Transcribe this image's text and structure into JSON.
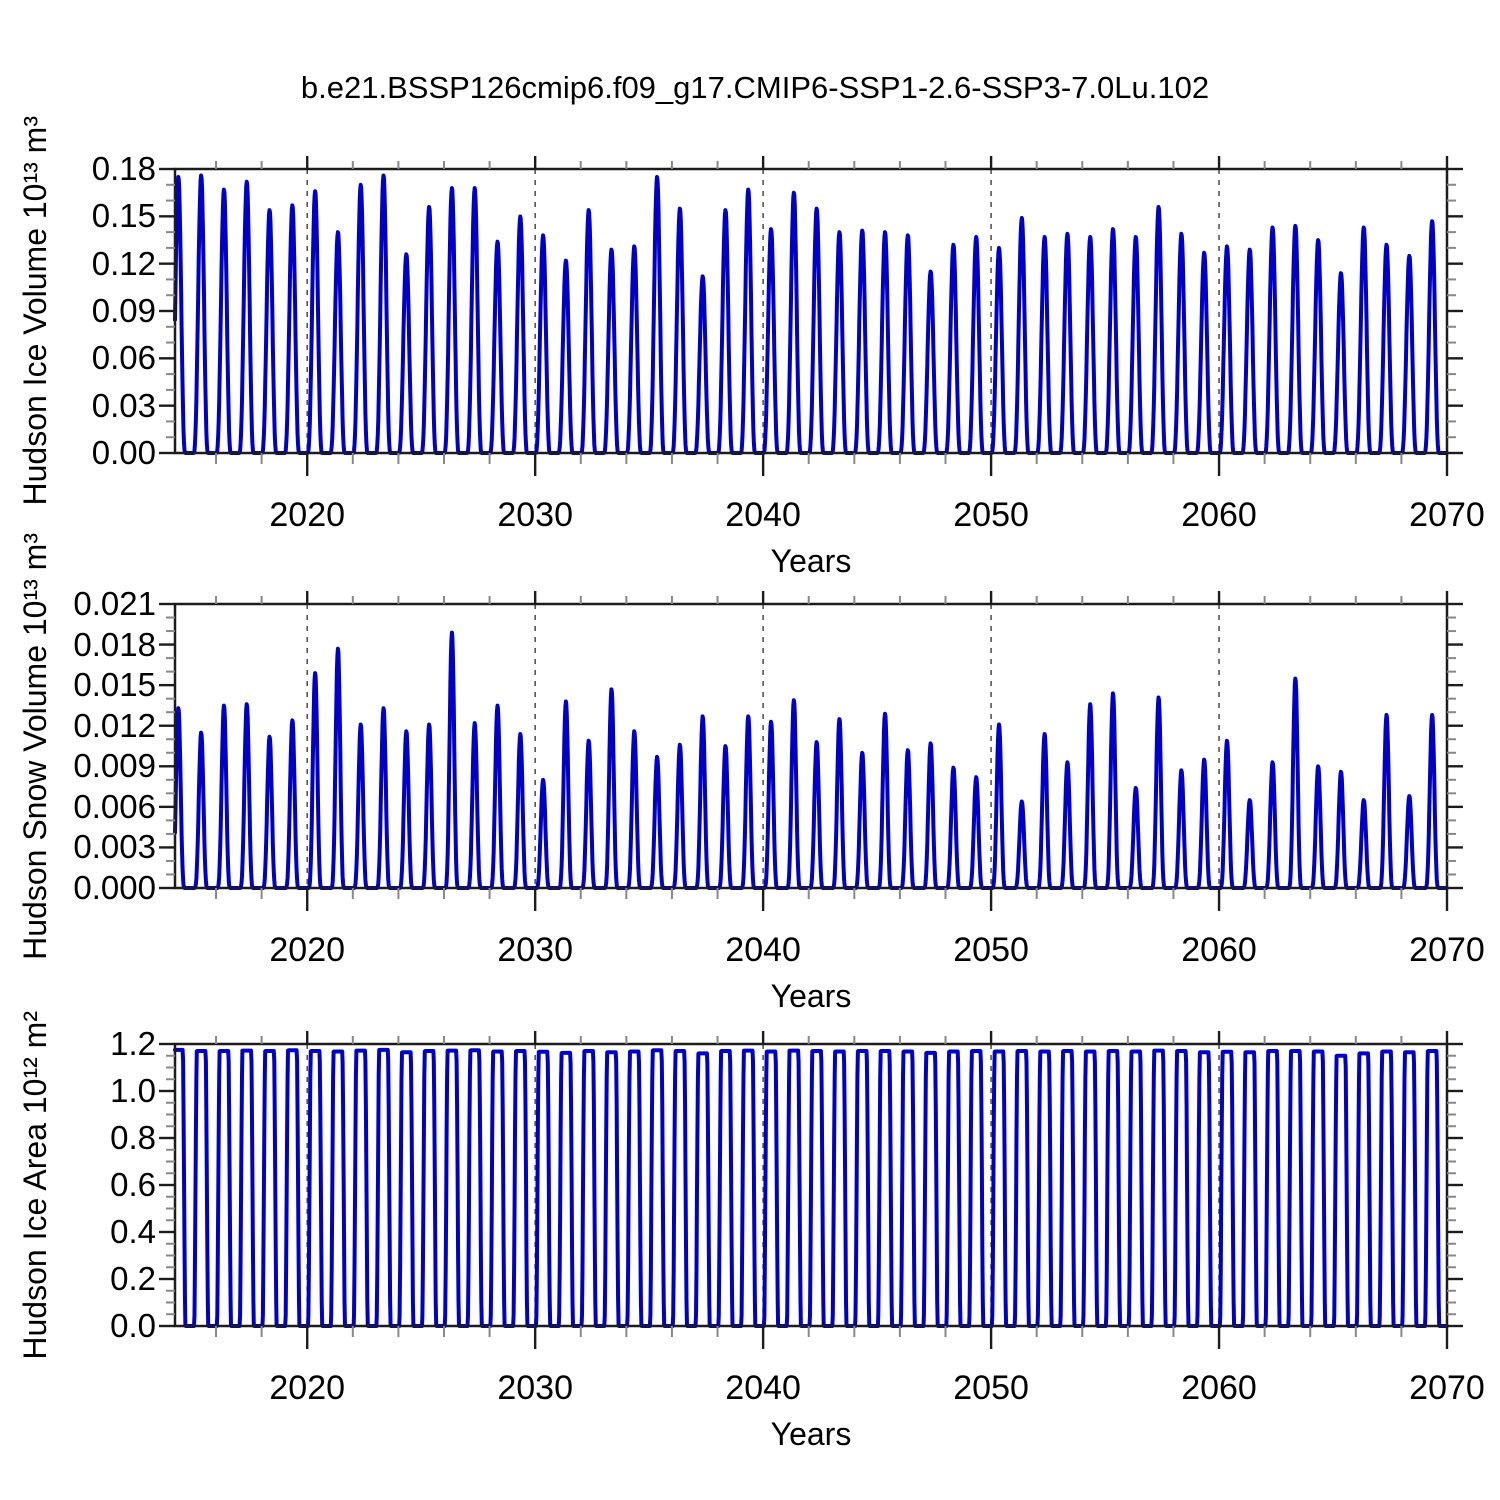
{
  "title": "b.e21.BSSP126cmip6.f09_g17.CMIP6-SSP1-2.6-SSP3-7.0Lu.102",
  "line_color": "#0000CD",
  "grid_color": "#555555",
  "axis_color": "#1c1c1c",
  "chart_data": [
    {
      "type": "line",
      "panel": 1,
      "ylabel": "Hudson Ice Volume 10¹³ m³",
      "xlabel": "Years",
      "ylim": [
        0,
        0.18
      ],
      "xlim": [
        2014.2,
        2070.0
      ],
      "ytick_labels": [
        "0.18",
        "0.15",
        "0.12",
        "0.09",
        "0.06",
        "0.03",
        "0.00"
      ],
      "ytick_values": [
        0.18,
        0.15,
        0.12,
        0.09,
        0.06,
        0.03,
        0.0
      ],
      "xtick_labels": [
        "2020",
        "2030",
        "2040",
        "2050",
        "2060",
        "2070"
      ],
      "xtick_values": [
        2020,
        2030,
        2040,
        2050,
        2060,
        2070
      ],
      "grid": "dashed vertical gridlines at decade years 2020-2060",
      "legend": "none",
      "annual_cycle": "value oscillates each year between ~0 (summer melt) and the winter peak listed below",
      "peak_years": [
        2014,
        2015,
        2016,
        2017,
        2018,
        2019,
        2020,
        2021,
        2022,
        2023,
        2024,
        2025,
        2026,
        2027,
        2028,
        2029,
        2030,
        2031,
        2032,
        2033,
        2034,
        2035,
        2036,
        2037,
        2038,
        2039,
        2040,
        2041,
        2042,
        2043,
        2044,
        2045,
        2046,
        2047,
        2048,
        2049,
        2050,
        2051,
        2052,
        2053,
        2054,
        2055,
        2056,
        2057,
        2058,
        2059,
        2060,
        2061,
        2062,
        2063,
        2064,
        2065,
        2066,
        2067,
        2068,
        2069
      ],
      "peak_values": [
        0.175,
        0.176,
        0.167,
        0.172,
        0.154,
        0.157,
        0.166,
        0.14,
        0.17,
        0.176,
        0.126,
        0.156,
        0.168,
        0.168,
        0.134,
        0.15,
        0.138,
        0.122,
        0.154,
        0.129,
        0.131,
        0.175,
        0.155,
        0.112,
        0.154,
        0.167,
        0.142,
        0.165,
        0.155,
        0.14,
        0.141,
        0.14,
        0.138,
        0.115,
        0.132,
        0.137,
        0.13,
        0.149,
        0.137,
        0.139,
        0.137,
        0.142,
        0.137,
        0.156,
        0.139,
        0.127,
        0.131,
        0.129,
        0.143,
        0.144,
        0.135,
        0.114,
        0.143,
        0.132,
        0.125,
        0.147
      ],
      "seasonal_minimum": 0.0
    },
    {
      "type": "line",
      "panel": 2,
      "ylabel": "Hudson Snow Volume 10¹³ m³",
      "xlabel": "Years",
      "ylim": [
        0,
        0.021
      ],
      "xlim": [
        2014.2,
        2070.0
      ],
      "ytick_labels": [
        "0.021",
        "0.018",
        "0.015",
        "0.012",
        "0.009",
        "0.006",
        "0.003",
        "0.000"
      ],
      "ytick_values": [
        0.021,
        0.018,
        0.015,
        0.012,
        0.009,
        0.006,
        0.003,
        0.0
      ],
      "xtick_labels": [
        "2020",
        "2030",
        "2040",
        "2050",
        "2060",
        "2070"
      ],
      "xtick_values": [
        2020,
        2030,
        2040,
        2050,
        2060,
        2070
      ],
      "grid": "dashed vertical gridlines at decade years 2020-2060",
      "legend": "none",
      "annual_cycle": "value oscillates each year between ~0 (summer) and the winter peak listed below",
      "peak_years": [
        2014,
        2015,
        2016,
        2017,
        2018,
        2019,
        2020,
        2021,
        2022,
        2023,
        2024,
        2025,
        2026,
        2027,
        2028,
        2029,
        2030,
        2031,
        2032,
        2033,
        2034,
        2035,
        2036,
        2037,
        2038,
        2039,
        2040,
        2041,
        2042,
        2043,
        2044,
        2045,
        2046,
        2047,
        2048,
        2049,
        2050,
        2051,
        2052,
        2053,
        2054,
        2055,
        2056,
        2057,
        2058,
        2059,
        2060,
        2061,
        2062,
        2063,
        2064,
        2065,
        2066,
        2067,
        2068,
        2069
      ],
      "peak_values": [
        0.0133,
        0.0115,
        0.0135,
        0.0136,
        0.0112,
        0.0124,
        0.0159,
        0.0177,
        0.0121,
        0.0133,
        0.0116,
        0.0121,
        0.0189,
        0.0122,
        0.0135,
        0.0114,
        0.008,
        0.0138,
        0.0109,
        0.0147,
        0.0116,
        0.0097,
        0.0106,
        0.0127,
        0.0105,
        0.0127,
        0.0123,
        0.0139,
        0.0108,
        0.0125,
        0.01,
        0.0129,
        0.0102,
        0.0107,
        0.0089,
        0.0082,
        0.0121,
        0.0064,
        0.0114,
        0.0093,
        0.0136,
        0.0144,
        0.0074,
        0.0141,
        0.0087,
        0.0095,
        0.0109,
        0.0065,
        0.0093,
        0.0155,
        0.009,
        0.0086,
        0.0065,
        0.0128,
        0.0068,
        0.0128
      ],
      "seasonal_minimum": 0.0
    },
    {
      "type": "line",
      "panel": 3,
      "ylabel": "Hudson Ice Area 10¹² m²",
      "xlabel": "Years",
      "ylim": [
        0,
        1.2
      ],
      "xlim": [
        2014.2,
        2070.0
      ],
      "ytick_labels": [
        "1.2",
        "1.0",
        "0.8",
        "0.6",
        "0.4",
        "0.2",
        "0.0"
      ],
      "ytick_values": [
        1.2,
        1.0,
        0.8,
        0.6,
        0.4,
        0.2,
        0.0
      ],
      "xtick_labels": [
        "2020",
        "2030",
        "2040",
        "2050",
        "2060",
        "2070"
      ],
      "xtick_values": [
        2020,
        2030,
        2040,
        2050,
        2060,
        2070
      ],
      "grid": "dashed vertical gridlines at decade years 2020-2060",
      "legend": "none",
      "annual_cycle": "square-wave-like annual cycle: flat winter maximum near full coverage, brief summer minimum at ~0",
      "peak_years": [
        2014,
        2015,
        2016,
        2017,
        2018,
        2019,
        2020,
        2021,
        2022,
        2023,
        2024,
        2025,
        2026,
        2027,
        2028,
        2029,
        2030,
        2031,
        2032,
        2033,
        2034,
        2035,
        2036,
        2037,
        2038,
        2039,
        2040,
        2041,
        2042,
        2043,
        2044,
        2045,
        2046,
        2047,
        2048,
        2049,
        2050,
        2051,
        2052,
        2053,
        2054,
        2055,
        2056,
        2057,
        2058,
        2059,
        2060,
        2061,
        2062,
        2063,
        2064,
        2065,
        2066,
        2067,
        2068,
        2069
      ],
      "peak_values": [
        1.175,
        1.17,
        1.17,
        1.172,
        1.17,
        1.173,
        1.17,
        1.168,
        1.172,
        1.175,
        1.165,
        1.17,
        1.172,
        1.173,
        1.168,
        1.17,
        1.167,
        1.162,
        1.17,
        1.165,
        1.168,
        1.173,
        1.17,
        1.16,
        1.17,
        1.172,
        1.168,
        1.172,
        1.17,
        1.168,
        1.17,
        1.17,
        1.168,
        1.162,
        1.168,
        1.17,
        1.168,
        1.17,
        1.168,
        1.17,
        1.168,
        1.17,
        1.168,
        1.172,
        1.17,
        1.165,
        1.167,
        1.165,
        1.17,
        1.17,
        1.168,
        1.15,
        1.16,
        1.168,
        1.165,
        1.17
      ],
      "seasonal_minimum": 0.0
    }
  ]
}
